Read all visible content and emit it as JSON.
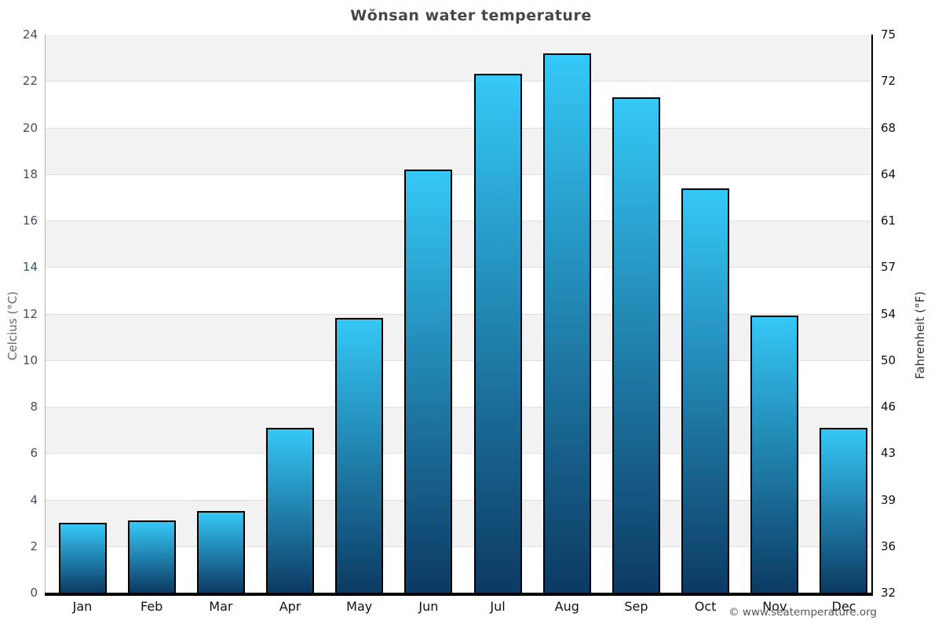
{
  "page": {
    "title": "Wŏnsan water temperature",
    "footer": "© www.seatemperature.org"
  },
  "chart_data": {
    "type": "bar",
    "title": "Wŏnsan water temperature",
    "categories": [
      "Jan",
      "Feb",
      "Mar",
      "Apr",
      "May",
      "Jun",
      "Jul",
      "Aug",
      "Sep",
      "Oct",
      "Nov",
      "Dec"
    ],
    "values": [
      3.0,
      3.1,
      3.5,
      7.1,
      11.8,
      18.2,
      22.3,
      23.2,
      21.3,
      17.4,
      11.9,
      7.1
    ],
    "ylabel_left": "Celcius (°C)",
    "ylabel_right": "Fahrenheit (°F)",
    "ylim": [
      0,
      24
    ],
    "yticks_left": [
      0,
      2,
      4,
      6,
      8,
      10,
      12,
      14,
      16,
      18,
      20,
      22,
      24
    ],
    "yticks_right": [
      32,
      36,
      39,
      43,
      46,
      50,
      54,
      57,
      61,
      64,
      68,
      72,
      75
    ],
    "grid": true,
    "legend": false,
    "band_stripes": true,
    "colors": {
      "bar_top": "#35c8f7",
      "bar_bottom": "#0c3a63",
      "bar_border": "#000000",
      "stripe": "#f2f2f2",
      "gridline": "#e0e0e0",
      "left_axis_line": "#b3b3b3",
      "axis_line": "#000000",
      "title_text": "#474747",
      "tick_left_text": "#41505d",
      "tick_right_text": "#111111",
      "month_text": "#111111",
      "footer_text": "#555555"
    }
  }
}
